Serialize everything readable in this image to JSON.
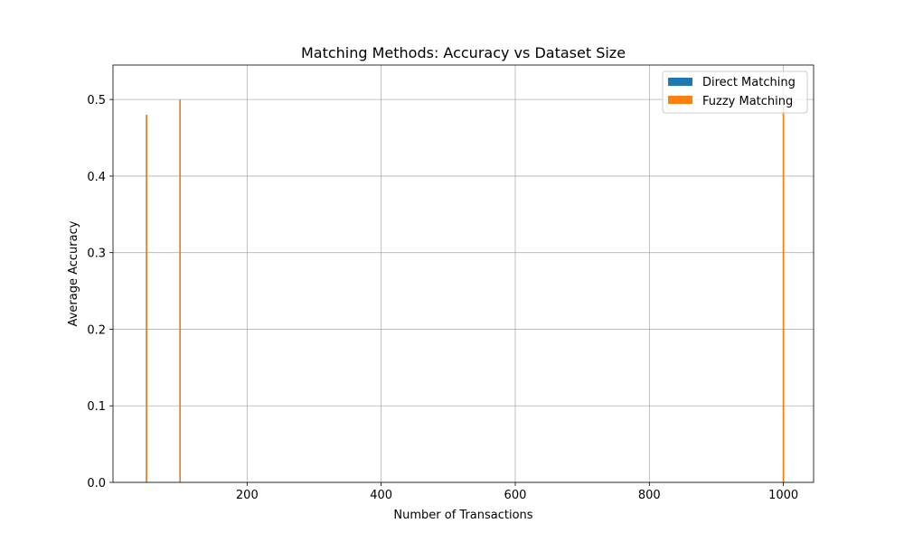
{
  "chart_data": {
    "type": "bar",
    "title": "Matching Methods: Accuracy vs Dataset Size",
    "xlabel": "Number of Transactions",
    "ylabel": "Average Accuracy",
    "xlim": [
      0,
      1045
    ],
    "ylim": [
      0,
      0.545
    ],
    "xticks": [
      200,
      400,
      600,
      800,
      1000
    ],
    "yticks": [
      0.0,
      0.1,
      0.2,
      0.3,
      0.4,
      0.5
    ],
    "grid": true,
    "legend_position": "top-right",
    "bar_width": 1,
    "series": [
      {
        "name": "Direct Matching",
        "color": "#1f77b4",
        "points": [
          {
            "x": 50,
            "y": 0.48
          },
          {
            "x": 100,
            "y": 0.5
          },
          {
            "x": 1000,
            "y": 0.49
          }
        ]
      },
      {
        "name": "Fuzzy Matching",
        "color": "#ff7f0e",
        "points": [
          {
            "x": 50,
            "y": 0.48
          },
          {
            "x": 100,
            "y": 0.5
          },
          {
            "x": 1000,
            "y": 0.49
          }
        ]
      }
    ]
  }
}
